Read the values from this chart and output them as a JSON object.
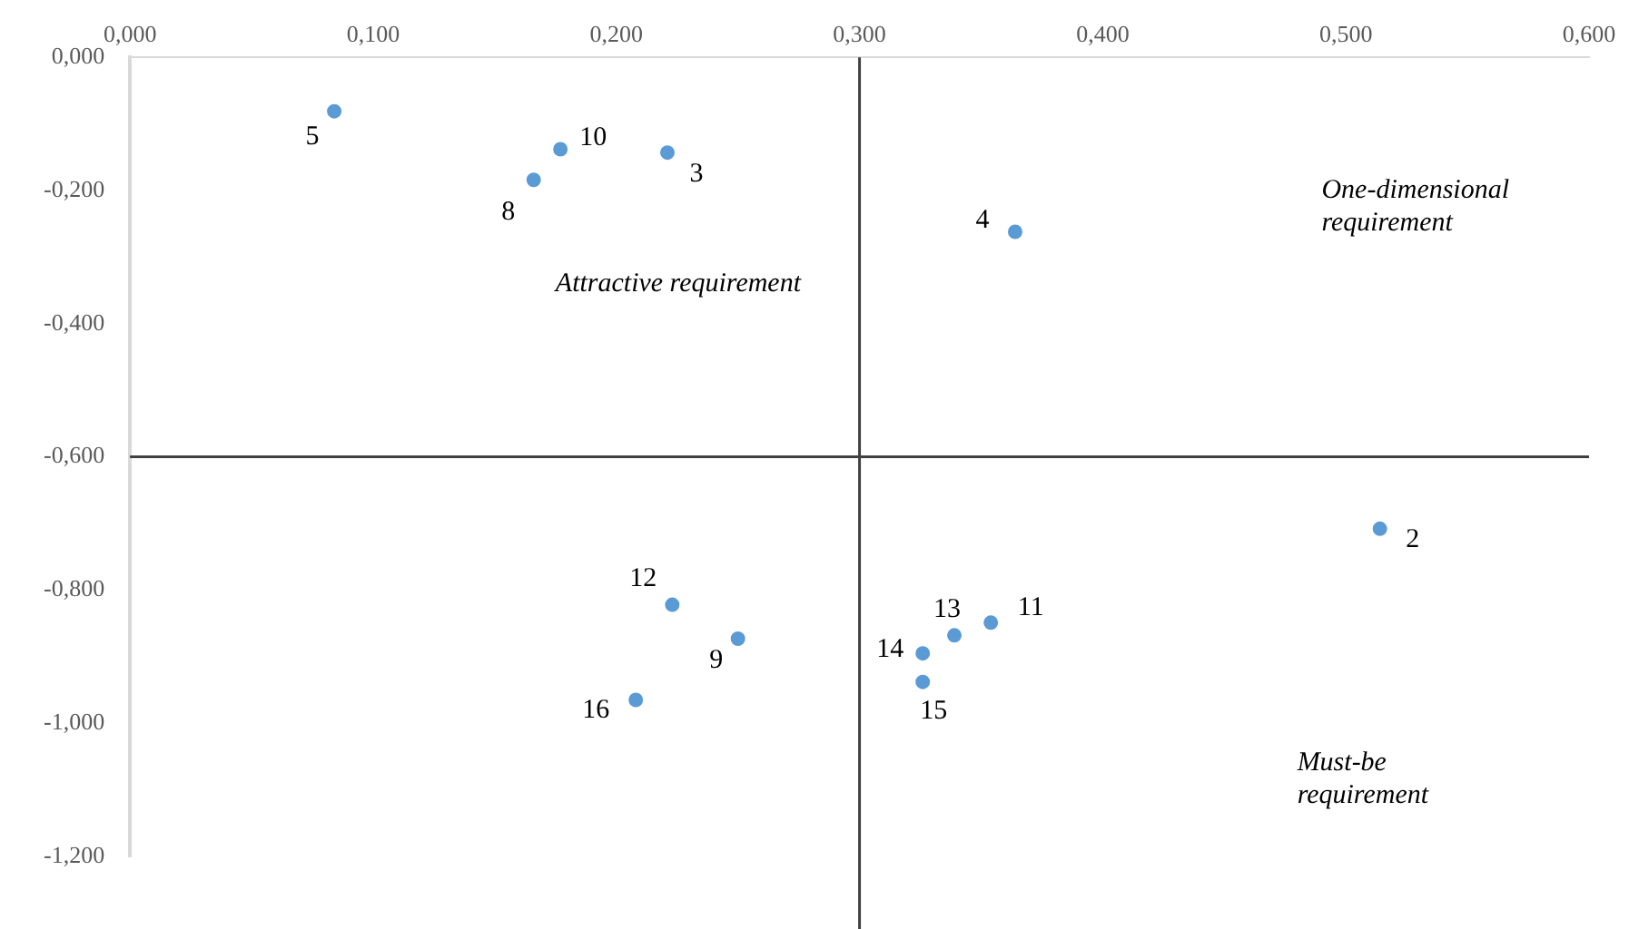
{
  "chart_data": {
    "type": "scatter",
    "series": [
      {
        "color": "#5b9bd5",
        "x": [
          0.514,
          0.221,
          0.364,
          0.084,
          0.166,
          0.25,
          0.177,
          0.354,
          0.223,
          0.339,
          0.326,
          0.326,
          0.208
        ],
        "values": [
          -0.708,
          -0.143,
          -0.262,
          -0.081,
          -0.184,
          -0.873,
          -0.138,
          -0.849,
          -0.822,
          -0.868,
          -0.895,
          -0.938,
          -0.965
        ]
      }
    ],
    "xlim": [
      0,
      0.6
    ],
    "ylim": [
      -1.2,
      0
    ],
    "xticks": [
      {
        "value": 0,
        "label": "0,000"
      },
      {
        "value": 0.1,
        "label": "0,100"
      },
      {
        "value": 0.2,
        "label": "0,200"
      },
      {
        "value": 0.3,
        "label": "0,300"
      },
      {
        "value": 0.4,
        "label": "0,400"
      },
      {
        "value": 0.5,
        "label": "0,500"
      },
      {
        "value": 0.6,
        "label": "0,600"
      }
    ],
    "yticks": [
      {
        "value": 0,
        "label": "0,000"
      },
      {
        "value": -0.2,
        "label": "-0,200"
      },
      {
        "value": -0.4,
        "label": "-0,400"
      },
      {
        "value": -0.6,
        "label": "-0,600"
      },
      {
        "value": -0.8,
        "label": "-0,800"
      },
      {
        "value": -1,
        "label": "-1,000"
      },
      {
        "value": -1.2,
        "label": "-1,200"
      }
    ],
    "ref_lines": [
      {
        "axis": "x",
        "value": 0.3,
        "color": "#404040"
      },
      {
        "axis": "y",
        "value": -0.6,
        "color": "#404040"
      }
    ],
    "annotations": [
      "Attractive requirement",
      "One-dimensional requirement",
      "Must-be requirement",
      {
        "text": "2",
        "x": 0.514,
        "y": -0.708
      },
      {
        "text": "3",
        "x": 0.221,
        "y": -0.143
      },
      {
        "text": "4",
        "x": 0.364,
        "y": -0.262
      },
      {
        "text": "5",
        "x": 0.084,
        "y": -0.081
      },
      {
        "text": "8",
        "x": 0.166,
        "y": -0.184
      },
      {
        "text": "9",
        "x": 0.25,
        "y": -0.873
      },
      {
        "text": "10",
        "x": 0.177,
        "y": -0.138
      },
      {
        "text": "11",
        "x": 0.354,
        "y": -0.849
      },
      {
        "text": "12",
        "x": 0.223,
        "y": -0.822
      },
      {
        "text": "13",
        "x": 0.339,
        "y": -0.868
      },
      {
        "text": "14",
        "x": 0.326,
        "y": -0.895
      },
      {
        "text": "15",
        "x": 0.326,
        "y": -0.938
      },
      {
        "text": "16",
        "x": 0.208,
        "y": -0.965
      }
    ],
    "grid": false,
    "legend": false,
    "marker": "circle"
  }
}
